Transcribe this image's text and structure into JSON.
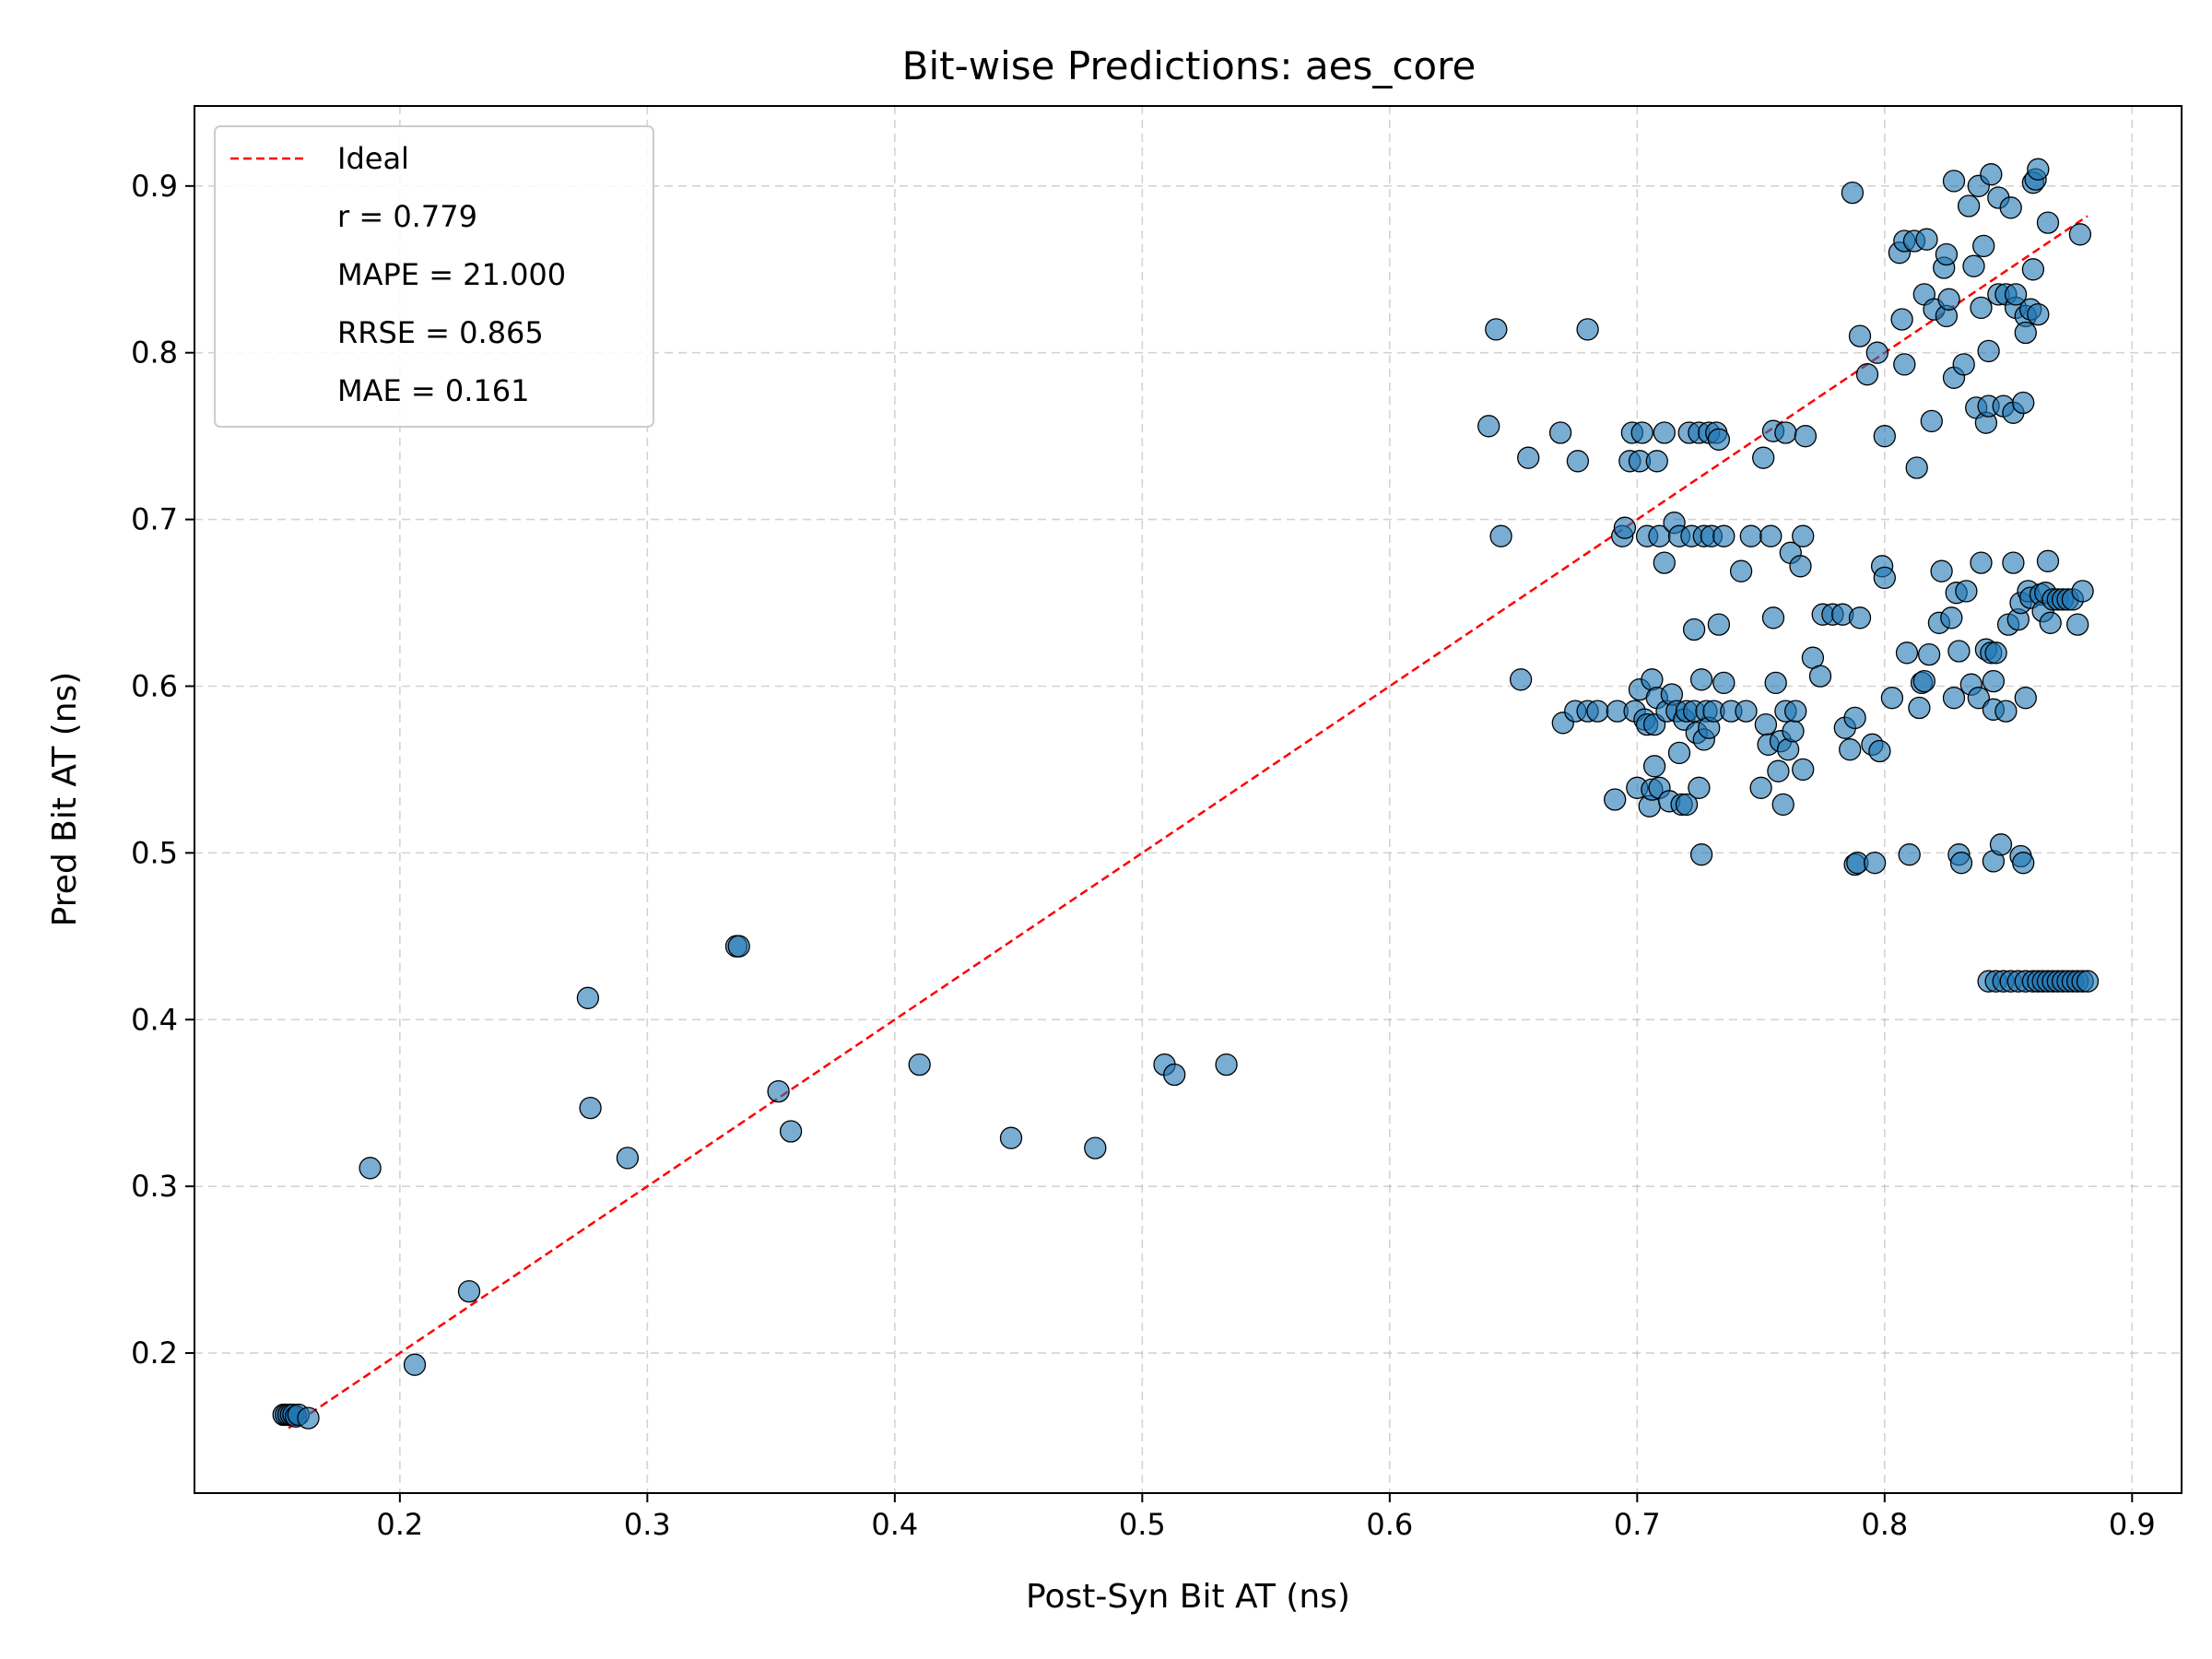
{
  "chart_data": {
    "type": "scatter",
    "title": "Bit-wise Predictions: aes_core",
    "xlabel": "Post-Syn Bit AT (ns)",
    "ylabel": "Pred Bit AT (ns)",
    "xlim": [
      0.117,
      0.92
    ],
    "ylim": [
      0.116,
      0.948
    ],
    "xticks": [
      0.2,
      0.3,
      0.4,
      0.5,
      0.6,
      0.7,
      0.8,
      0.9
    ],
    "yticks": [
      0.2,
      0.3,
      0.4,
      0.5,
      0.6,
      0.7,
      0.8,
      0.9
    ],
    "grid": true,
    "legend_position": "upper-left",
    "legend": {
      "ideal_label": "Ideal",
      "stats": [
        "r = 0.779",
        "MAPE = 21.000",
        "RRSE = 0.865",
        "MAE = 0.161"
      ]
    },
    "colors": {
      "points": "#1f77b4",
      "ideal_line": "#ff0000"
    },
    "ideal_line": {
      "x": [
        0.155,
        0.882
      ],
      "y": [
        0.155,
        0.882
      ]
    },
    "points": [
      [
        0.153,
        0.163
      ],
      [
        0.154,
        0.163
      ],
      [
        0.155,
        0.163
      ],
      [
        0.156,
        0.163
      ],
      [
        0.157,
        0.163
      ],
      [
        0.158,
        0.162
      ],
      [
        0.159,
        0.163
      ],
      [
        0.163,
        0.161
      ],
      [
        0.188,
        0.311
      ],
      [
        0.206,
        0.193
      ],
      [
        0.228,
        0.237
      ],
      [
        0.276,
        0.413
      ],
      [
        0.277,
        0.347
      ],
      [
        0.292,
        0.317
      ],
      [
        0.336,
        0.444
      ],
      [
        0.337,
        0.444
      ],
      [
        0.353,
        0.357
      ],
      [
        0.358,
        0.333
      ],
      [
        0.41,
        0.373
      ],
      [
        0.447,
        0.329
      ],
      [
        0.481,
        0.323
      ],
      [
        0.509,
        0.373
      ],
      [
        0.513,
        0.367
      ],
      [
        0.534,
        0.373
      ],
      [
        0.64,
        0.756
      ],
      [
        0.643,
        0.814
      ],
      [
        0.645,
        0.69
      ],
      [
        0.653,
        0.604
      ],
      [
        0.656,
        0.737
      ],
      [
        0.669,
        0.752
      ],
      [
        0.67,
        0.578
      ],
      [
        0.675,
        0.585
      ],
      [
        0.676,
        0.735
      ],
      [
        0.68,
        0.814
      ],
      [
        0.68,
        0.585
      ],
      [
        0.684,
        0.585
      ],
      [
        0.691,
        0.532
      ],
      [
        0.692,
        0.585
      ],
      [
        0.694,
        0.69
      ],
      [
        0.695,
        0.695
      ],
      [
        0.697,
        0.735
      ],
      [
        0.698,
        0.752
      ],
      [
        0.699,
        0.585
      ],
      [
        0.7,
        0.539
      ],
      [
        0.701,
        0.598
      ],
      [
        0.701,
        0.735
      ],
      [
        0.702,
        0.752
      ],
      [
        0.703,
        0.58
      ],
      [
        0.704,
        0.577
      ],
      [
        0.704,
        0.69
      ],
      [
        0.705,
        0.528
      ],
      [
        0.706,
        0.538
      ],
      [
        0.706,
        0.604
      ],
      [
        0.707,
        0.552
      ],
      [
        0.707,
        0.577
      ],
      [
        0.708,
        0.593
      ],
      [
        0.708,
        0.735
      ],
      [
        0.709,
        0.69
      ],
      [
        0.709,
        0.539
      ],
      [
        0.711,
        0.674
      ],
      [
        0.711,
        0.752
      ],
      [
        0.712,
        0.585
      ],
      [
        0.713,
        0.531
      ],
      [
        0.714,
        0.595
      ],
      [
        0.715,
        0.698
      ],
      [
        0.716,
        0.585
      ],
      [
        0.717,
        0.56
      ],
      [
        0.717,
        0.69
      ],
      [
        0.718,
        0.529
      ],
      [
        0.719,
        0.58
      ],
      [
        0.72,
        0.585
      ],
      [
        0.72,
        0.529
      ],
      [
        0.721,
        0.752
      ],
      [
        0.722,
        0.69
      ],
      [
        0.723,
        0.585
      ],
      [
        0.723,
        0.634
      ],
      [
        0.724,
        0.572
      ],
      [
        0.725,
        0.539
      ],
      [
        0.725,
        0.752
      ],
      [
        0.726,
        0.604
      ],
      [
        0.726,
        0.499
      ],
      [
        0.727,
        0.568
      ],
      [
        0.727,
        0.69
      ],
      [
        0.728,
        0.585
      ],
      [
        0.729,
        0.752
      ],
      [
        0.729,
        0.575
      ],
      [
        0.73,
        0.69
      ],
      [
        0.731,
        0.585
      ],
      [
        0.732,
        0.752
      ],
      [
        0.733,
        0.637
      ],
      [
        0.733,
        0.748
      ],
      [
        0.735,
        0.602
      ],
      [
        0.735,
        0.69
      ],
      [
        0.738,
        0.585
      ],
      [
        0.742,
        0.669
      ],
      [
        0.744,
        0.585
      ],
      [
        0.746,
        0.69
      ],
      [
        0.75,
        0.539
      ],
      [
        0.751,
        0.737
      ],
      [
        0.752,
        0.577
      ],
      [
        0.753,
        0.565
      ],
      [
        0.754,
        0.69
      ],
      [
        0.755,
        0.641
      ],
      [
        0.755,
        0.753
      ],
      [
        0.756,
        0.602
      ],
      [
        0.757,
        0.549
      ],
      [
        0.758,
        0.567
      ],
      [
        0.759,
        0.529
      ],
      [
        0.76,
        0.752
      ],
      [
        0.76,
        0.585
      ],
      [
        0.761,
        0.562
      ],
      [
        0.762,
        0.68
      ],
      [
        0.763,
        0.573
      ],
      [
        0.764,
        0.585
      ],
      [
        0.766,
        0.672
      ],
      [
        0.767,
        0.69
      ],
      [
        0.767,
        0.55
      ],
      [
        0.768,
        0.75
      ],
      [
        0.771,
        0.617
      ],
      [
        0.774,
        0.606
      ],
      [
        0.775,
        0.643
      ],
      [
        0.779,
        0.643
      ],
      [
        0.783,
        0.643
      ],
      [
        0.784,
        0.575
      ],
      [
        0.786,
        0.562
      ],
      [
        0.787,
        0.896
      ],
      [
        0.788,
        0.493
      ],
      [
        0.788,
        0.581
      ],
      [
        0.789,
        0.494
      ],
      [
        0.79,
        0.81
      ],
      [
        0.79,
        0.641
      ],
      [
        0.793,
        0.787
      ],
      [
        0.795,
        0.565
      ],
      [
        0.796,
        0.494
      ],
      [
        0.797,
        0.8
      ],
      [
        0.798,
        0.561
      ],
      [
        0.799,
        0.672
      ],
      [
        0.8,
        0.75
      ],
      [
        0.8,
        0.665
      ],
      [
        0.803,
        0.593
      ],
      [
        0.806,
        0.86
      ],
      [
        0.807,
        0.82
      ],
      [
        0.808,
        0.867
      ],
      [
        0.808,
        0.793
      ],
      [
        0.809,
        0.62
      ],
      [
        0.81,
        0.499
      ],
      [
        0.812,
        0.867
      ],
      [
        0.813,
        0.731
      ],
      [
        0.814,
        0.587
      ],
      [
        0.815,
        0.602
      ],
      [
        0.816,
        0.835
      ],
      [
        0.816,
        0.603
      ],
      [
        0.817,
        0.868
      ],
      [
        0.818,
        0.619
      ],
      [
        0.819,
        0.759
      ],
      [
        0.82,
        0.826
      ],
      [
        0.822,
        0.638
      ],
      [
        0.823,
        0.669
      ],
      [
        0.824,
        0.851
      ],
      [
        0.825,
        0.859
      ],
      [
        0.825,
        0.822
      ],
      [
        0.826,
        0.832
      ],
      [
        0.827,
        0.641
      ],
      [
        0.828,
        0.903
      ],
      [
        0.828,
        0.785
      ],
      [
        0.828,
        0.593
      ],
      [
        0.829,
        0.656
      ],
      [
        0.83,
        0.621
      ],
      [
        0.83,
        0.499
      ],
      [
        0.831,
        0.494
      ],
      [
        0.832,
        0.793
      ],
      [
        0.833,
        0.657
      ],
      [
        0.834,
        0.888
      ],
      [
        0.835,
        0.601
      ],
      [
        0.836,
        0.852
      ],
      [
        0.837,
        0.767
      ],
      [
        0.838,
        0.9
      ],
      [
        0.838,
        0.593
      ],
      [
        0.839,
        0.674
      ],
      [
        0.839,
        0.827
      ],
      [
        0.84,
        0.864
      ],
      [
        0.841,
        0.622
      ],
      [
        0.841,
        0.758
      ],
      [
        0.842,
        0.801
      ],
      [
        0.842,
        0.768
      ],
      [
        0.843,
        0.907
      ],
      [
        0.843,
        0.62
      ],
      [
        0.844,
        0.586
      ],
      [
        0.844,
        0.603
      ],
      [
        0.844,
        0.495
      ],
      [
        0.845,
        0.62
      ],
      [
        0.846,
        0.893
      ],
      [
        0.846,
        0.835
      ],
      [
        0.847,
        0.505
      ],
      [
        0.848,
        0.768
      ],
      [
        0.849,
        0.835
      ],
      [
        0.849,
        0.585
      ],
      [
        0.85,
        0.637
      ],
      [
        0.851,
        0.887
      ],
      [
        0.852,
        0.674
      ],
      [
        0.852,
        0.764
      ],
      [
        0.853,
        0.827
      ],
      [
        0.853,
        0.835
      ],
      [
        0.854,
        0.64
      ],
      [
        0.855,
        0.65
      ],
      [
        0.855,
        0.498
      ],
      [
        0.856,
        0.77
      ],
      [
        0.856,
        0.494
      ],
      [
        0.857,
        0.822
      ],
      [
        0.857,
        0.812
      ],
      [
        0.857,
        0.593
      ],
      [
        0.858,
        0.657
      ],
      [
        0.859,
        0.653
      ],
      [
        0.859,
        0.826
      ],
      [
        0.86,
        0.902
      ],
      [
        0.86,
        0.85
      ],
      [
        0.861,
        0.904
      ],
      [
        0.862,
        0.91
      ],
      [
        0.862,
        0.823
      ],
      [
        0.863,
        0.655
      ],
      [
        0.864,
        0.645
      ],
      [
        0.865,
        0.656
      ],
      [
        0.866,
        0.675
      ],
      [
        0.866,
        0.878
      ],
      [
        0.867,
        0.638
      ],
      [
        0.868,
        0.652
      ],
      [
        0.87,
        0.652
      ],
      [
        0.872,
        0.652
      ],
      [
        0.874,
        0.652
      ],
      [
        0.876,
        0.652
      ],
      [
        0.878,
        0.637
      ],
      [
        0.879,
        0.871
      ],
      [
        0.88,
        0.657
      ],
      [
        0.842,
        0.423
      ],
      [
        0.845,
        0.423
      ],
      [
        0.848,
        0.423
      ],
      [
        0.851,
        0.423
      ],
      [
        0.854,
        0.423
      ],
      [
        0.857,
        0.423
      ],
      [
        0.86,
        0.423
      ],
      [
        0.862,
        0.423
      ],
      [
        0.864,
        0.423
      ],
      [
        0.866,
        0.423
      ],
      [
        0.868,
        0.423
      ],
      [
        0.87,
        0.423
      ],
      [
        0.872,
        0.423
      ],
      [
        0.874,
        0.423
      ],
      [
        0.876,
        0.423
      ],
      [
        0.878,
        0.423
      ],
      [
        0.88,
        0.423
      ],
      [
        0.882,
        0.423
      ]
    ]
  }
}
